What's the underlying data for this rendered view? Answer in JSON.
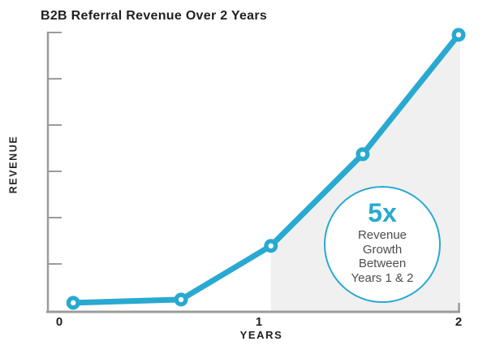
{
  "header": {
    "title": "B2B Referral Revenue Over 2 Years"
  },
  "colors": {
    "accent": "#29A9D1",
    "shade": "#F0F0F0",
    "axis": "#9B9B9B",
    "text_dark": "#231F20",
    "text_gray": "#4D4D4F"
  },
  "chart_data": {
    "type": "line",
    "title": "B2B Referral Revenue Over 2 Years",
    "xlabel": "YEARS",
    "ylabel": "REVENUE",
    "x": [
      0.07,
      0.61,
      1.06,
      1.52,
      2.0
    ],
    "y": [
      0.16,
      0.23,
      1.39,
      3.37,
      5.95
    ],
    "xlim": [
      0,
      2
    ],
    "ylim": [
      0,
      6.3
    ],
    "x_ticks": [
      {
        "value": 0,
        "label": "0"
      },
      {
        "value": 1,
        "label": "1"
      },
      {
        "value": 2,
        "label": "2"
      }
    ],
    "y_ticks_unlabeled": [
      1,
      2,
      3,
      4,
      5,
      6
    ],
    "grid": "off",
    "marker_style": "donut",
    "shaded_region": {
      "from_point_index": 2,
      "to_point_index": 4,
      "fill": "#F0F0F0",
      "meaning": "area under curve between Years 1 and 2"
    },
    "annotation": {
      "headline": "5x",
      "lines": [
        "Revenue",
        "Growth",
        "Between",
        "Years 1 & 2"
      ]
    }
  }
}
